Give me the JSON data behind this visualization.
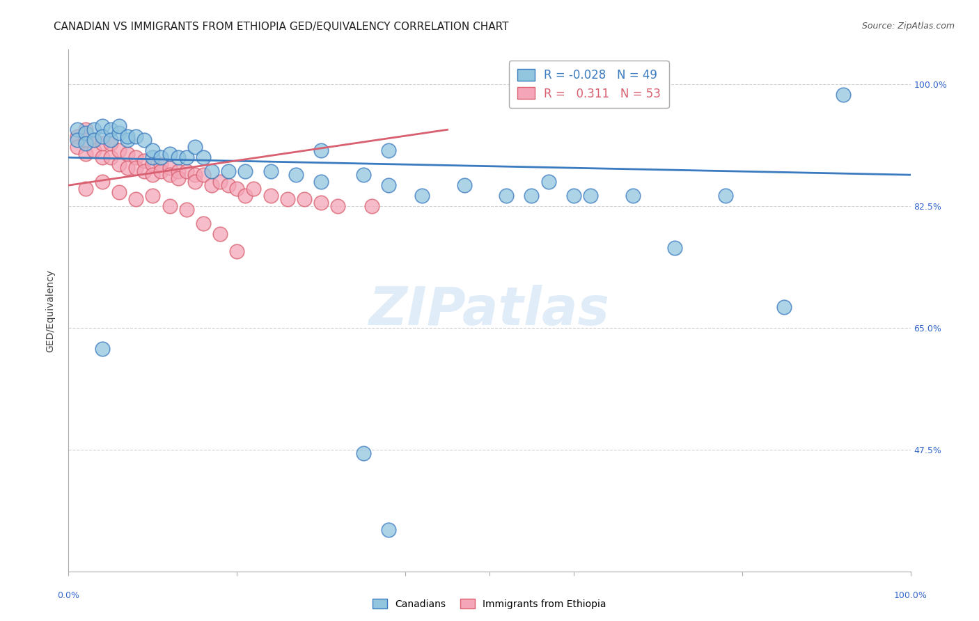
{
  "title": "CANADIAN VS IMMIGRANTS FROM ETHIOPIA GED/EQUIVALENCY CORRELATION CHART",
  "source": "Source: ZipAtlas.com",
  "ylabel": "GED/Equivalency",
  "ytick_labels": [
    "100.0%",
    "82.5%",
    "65.0%",
    "47.5%"
  ],
  "ytick_values": [
    1.0,
    0.825,
    0.65,
    0.475
  ],
  "watermark": "ZIPatlas",
  "legend_blue_r": "-0.028",
  "legend_blue_n": "49",
  "legend_pink_r": "0.311",
  "legend_pink_n": "53",
  "blue_color": "#92c5de",
  "pink_color": "#f4a6b8",
  "blue_line_color": "#3a7abf",
  "pink_line_color": "#d96070",
  "blue_scatter_x": [
    0.01,
    0.01,
    0.02,
    0.02,
    0.03,
    0.03,
    0.04,
    0.04,
    0.05,
    0.05,
    0.06,
    0.06,
    0.07,
    0.07,
    0.08,
    0.09,
    0.1,
    0.1,
    0.11,
    0.12,
    0.13,
    0.14,
    0.15,
    0.16,
    0.17,
    0.19,
    0.21,
    0.24,
    0.27,
    0.3,
    0.35,
    0.38,
    0.42,
    0.47,
    0.52,
    0.3,
    0.38,
    0.55,
    0.57,
    0.6,
    0.62,
    0.67,
    0.72,
    0.78,
    0.85,
    0.92,
    0.04,
    0.35,
    0.38
  ],
  "blue_scatter_y": [
    0.935,
    0.92,
    0.93,
    0.915,
    0.935,
    0.92,
    0.94,
    0.925,
    0.935,
    0.92,
    0.93,
    0.94,
    0.92,
    0.925,
    0.925,
    0.92,
    0.895,
    0.905,
    0.895,
    0.9,
    0.895,
    0.895,
    0.91,
    0.895,
    0.875,
    0.875,
    0.875,
    0.875,
    0.87,
    0.86,
    0.87,
    0.855,
    0.84,
    0.855,
    0.84,
    0.905,
    0.905,
    0.84,
    0.86,
    0.84,
    0.84,
    0.84,
    0.765,
    0.84,
    0.68,
    0.985,
    0.62,
    0.47,
    0.36
  ],
  "pink_scatter_x": [
    0.01,
    0.01,
    0.02,
    0.02,
    0.02,
    0.03,
    0.03,
    0.04,
    0.04,
    0.05,
    0.05,
    0.06,
    0.06,
    0.07,
    0.07,
    0.08,
    0.08,
    0.09,
    0.09,
    0.1,
    0.1,
    0.11,
    0.11,
    0.12,
    0.12,
    0.13,
    0.13,
    0.14,
    0.15,
    0.15,
    0.16,
    0.17,
    0.18,
    0.19,
    0.2,
    0.21,
    0.22,
    0.24,
    0.26,
    0.28,
    0.3,
    0.32,
    0.36,
    0.02,
    0.04,
    0.06,
    0.08,
    0.1,
    0.12,
    0.14,
    0.16,
    0.18,
    0.2
  ],
  "pink_scatter_y": [
    0.925,
    0.91,
    0.935,
    0.92,
    0.9,
    0.92,
    0.905,
    0.915,
    0.895,
    0.915,
    0.895,
    0.905,
    0.885,
    0.9,
    0.88,
    0.895,
    0.88,
    0.89,
    0.875,
    0.885,
    0.87,
    0.885,
    0.875,
    0.88,
    0.87,
    0.875,
    0.865,
    0.875,
    0.87,
    0.86,
    0.87,
    0.855,
    0.86,
    0.855,
    0.85,
    0.84,
    0.85,
    0.84,
    0.835,
    0.835,
    0.83,
    0.825,
    0.825,
    0.85,
    0.86,
    0.845,
    0.835,
    0.84,
    0.825,
    0.82,
    0.8,
    0.785,
    0.76
  ],
  "title_fontsize": 11,
  "source_fontsize": 9,
  "axis_label_fontsize": 10,
  "tick_fontsize": 9,
  "legend_fontsize": 12,
  "watermark_fontsize": 55,
  "background_color": "#ffffff",
  "grid_color": "#d0d0d0",
  "tick_color": "#3366cc",
  "axis_color": "#aaaaaa",
  "xlim": [
    0.0,
    1.0
  ],
  "ylim": [
    0.3,
    1.05
  ]
}
